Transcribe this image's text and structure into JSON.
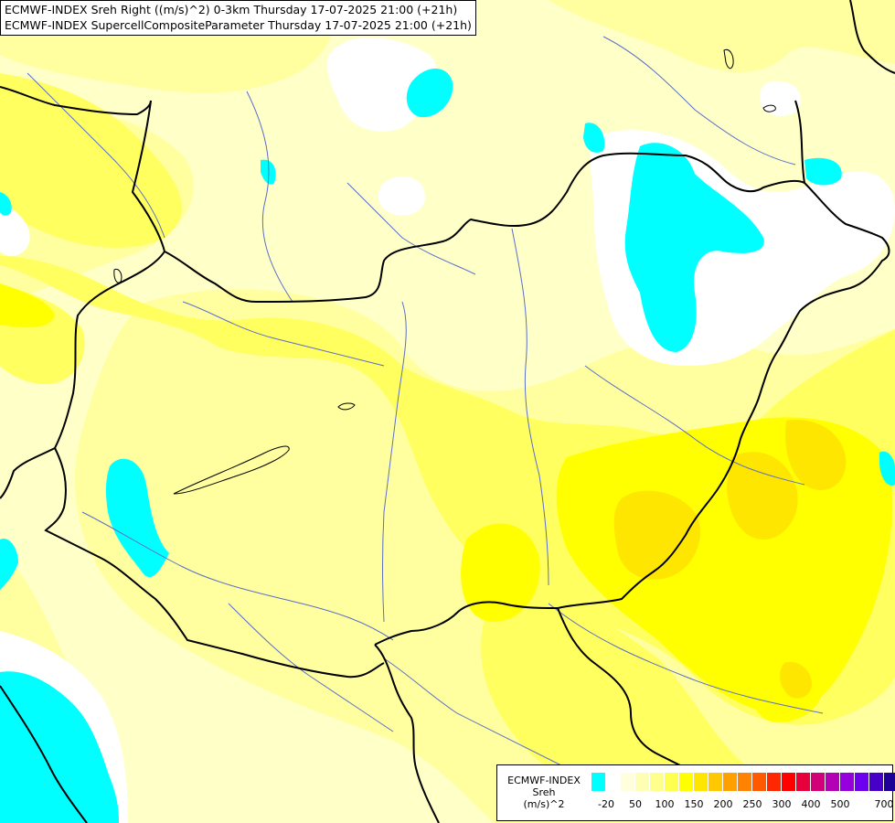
{
  "title_lines": [
    "ECMWF-INDEX Sreh Right ((m/s)^2) 0-3km Thursday 17-07-2025 21:00 (+21h)",
    "ECMWF-INDEX SupercellCompositeParameter Thursday 17-07-2025 21:00 (+21h)"
  ],
  "legend": {
    "name_line1": "ECMWF-INDEX",
    "name_line2": "Sreh",
    "name_line3": "(m/s)^2",
    "colors": [
      "#00ffff",
      "#ffffff",
      "#ffffdc",
      "#ffffb4",
      "#ffff8c",
      "#ffff50",
      "#ffff00",
      "#ffe600",
      "#ffc800",
      "#ffa000",
      "#ff8200",
      "#ff5a00",
      "#ff2800",
      "#ff0000",
      "#e6003c",
      "#d20078",
      "#b400b4",
      "#9600dc",
      "#6e00f0",
      "#4600c8",
      "#1e0096",
      "#000080"
    ],
    "ticks": [
      "-20",
      "50",
      "100",
      "150",
      "200",
      "250",
      "300",
      "400",
      "500",
      "700"
    ]
  },
  "colors": {
    "cyan": "#00ffff",
    "white": "#ffffff",
    "pale": "#ffffc8",
    "light": "#ffffa0",
    "yellow": "#ffff60",
    "bright": "#ffff00",
    "gold": "#ffe600",
    "orange": "#ffd200",
    "border": "#000000",
    "river": "#5a6ec8"
  }
}
